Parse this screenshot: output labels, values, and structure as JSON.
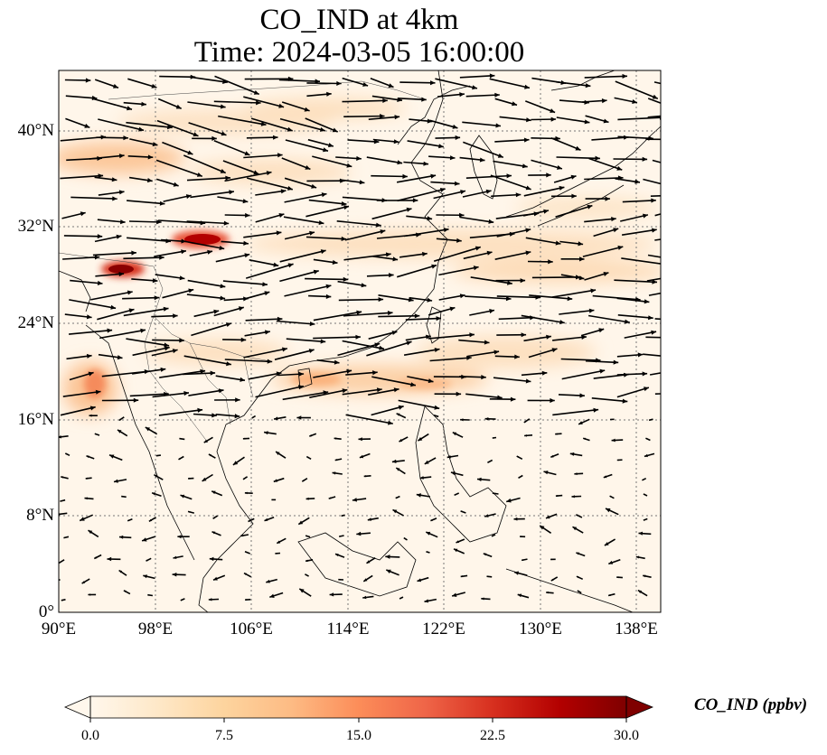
{
  "title": {
    "line1": "CO_IND at 4km",
    "line2": "Time: 2024-03-05 16:00:00"
  },
  "map": {
    "extent_lon": [
      90,
      140
    ],
    "extent_lat": [
      0,
      45
    ],
    "projection": "PlateCarree",
    "gridlines": "dotted",
    "coastlines": true,
    "country_borders": true,
    "wind_vectors": true,
    "x_ticks": [
      "90°E",
      "98°E",
      "106°E",
      "114°E",
      "122°E",
      "130°E",
      "138°E"
    ],
    "x_tick_values": [
      90,
      98,
      106,
      114,
      122,
      130,
      138
    ],
    "y_ticks": [
      "0°",
      "8°N",
      "16°N",
      "24°N",
      "32°N",
      "40°N"
    ],
    "y_tick_values": [
      0,
      8,
      16,
      24,
      32,
      40
    ]
  },
  "colorbar": {
    "label": "CO_IND (ppbv)",
    "ticks": [
      "0.0",
      "7.5",
      "15.0",
      "22.5",
      "30.0"
    ],
    "tick_values": [
      0,
      7.5,
      15,
      22.5,
      30
    ],
    "range": [
      0,
      30
    ],
    "colormap": "OrRd",
    "extend": "both",
    "colors": [
      "#fff7ec",
      "#fee8c8",
      "#fdd49e",
      "#fdbb84",
      "#fc8d59",
      "#ef6548",
      "#d7301f",
      "#b30000",
      "#7f0000"
    ]
  }
}
